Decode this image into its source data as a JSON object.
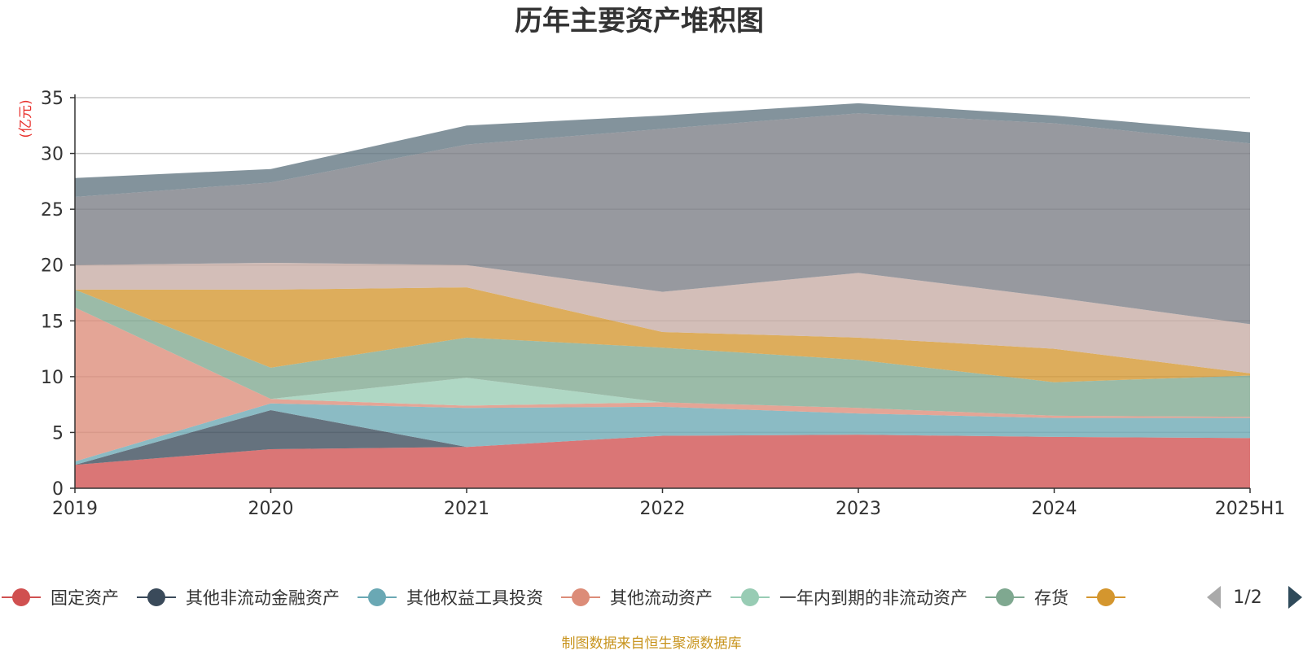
{
  "chart_data": {
    "type": "area",
    "stacked": true,
    "title": "历年主要资产堆积图",
    "unit_label": "(亿元)",
    "categories": [
      "2019",
      "2020",
      "2021",
      "2022",
      "2023",
      "2024",
      "2025H1"
    ],
    "ylim": [
      0,
      35
    ],
    "yticks": [
      0,
      5,
      10,
      15,
      20,
      25,
      30,
      35
    ],
    "grid": true,
    "legend_position": "bottom",
    "series": [
      {
        "name": "固定资产",
        "color": "#d05050",
        "values": [
          2.1,
          3.5,
          3.7,
          4.7,
          4.8,
          4.6,
          4.5
        ]
      },
      {
        "name": "其他非流动金融资产",
        "color": "#3a4a5a",
        "values": [
          0.0,
          3.5,
          0.0,
          0.0,
          0.0,
          0.0,
          0.0
        ]
      },
      {
        "name": "其他权益工具投资",
        "color": "#6aa8b4",
        "values": [
          0.3,
          0.6,
          3.5,
          2.6,
          1.9,
          1.7,
          1.8
        ]
      },
      {
        "name": "其他流动资产",
        "color": "#dc8c78",
        "values": [
          13.8,
          0.4,
          0.2,
          0.4,
          0.5,
          0.2,
          0.1
        ]
      },
      {
        "name": "一年内到期的非流动资产",
        "color": "#98ccb4",
        "values": [
          0.0,
          0.0,
          2.5,
          0.0,
          0.0,
          0.0,
          0.0
        ]
      },
      {
        "name": "存货",
        "color": "#7fa890",
        "values": [
          1.6,
          2.8,
          3.6,
          4.9,
          4.3,
          3.0,
          3.7
        ]
      },
      {
        "name": "",
        "color": "#d4962e",
        "values": [
          0.0,
          7.0,
          4.5,
          1.4,
          2.0,
          3.0,
          0.2
        ]
      },
      {
        "name": "",
        "color": "#c6aca4",
        "values": [
          2.2,
          2.4,
          2.0,
          3.6,
          5.8,
          4.6,
          4.4
        ]
      },
      {
        "name": "",
        "color": "#7a7c84",
        "values": [
          6.1,
          7.2,
          10.8,
          14.6,
          14.3,
          15.6,
          16.2
        ]
      },
      {
        "name": "",
        "color": "#607480",
        "values": [
          1.7,
          1.2,
          1.7,
          1.2,
          0.9,
          0.7,
          1.0
        ]
      }
    ]
  },
  "legend": {
    "page_indicator": "1/2"
  },
  "source_text": "制图数据来自恒生聚源数据库"
}
